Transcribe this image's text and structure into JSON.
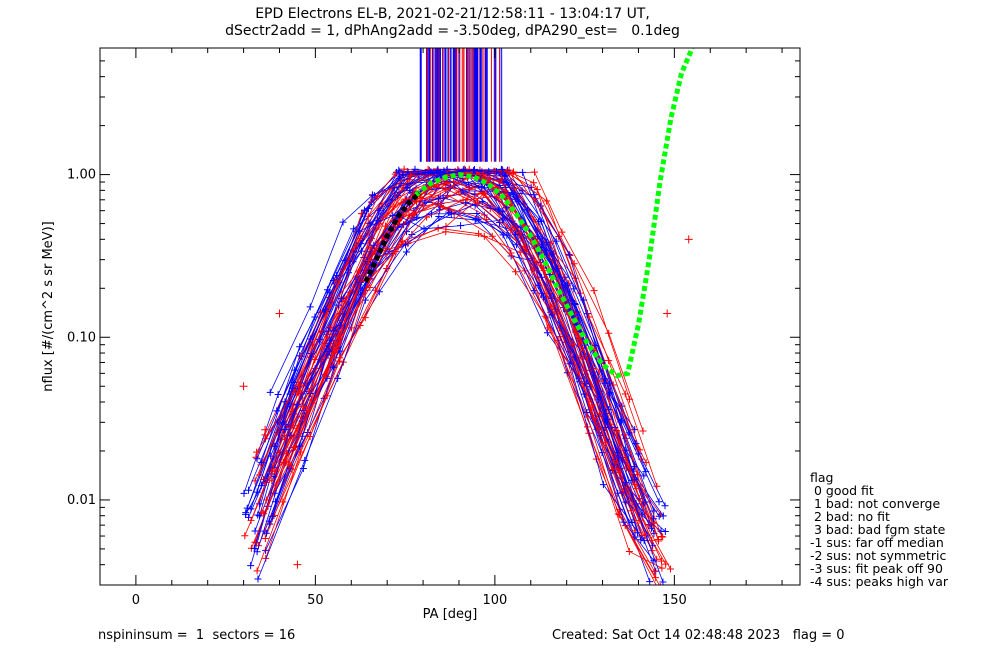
{
  "chart_data": {
    "type": "line",
    "title": "EPD Electrons EL-B, 2021-02-21/12:58:11 - 13:04:17 UT,",
    "subtitle": "dSectr2add = 1, dPhAng2add = -3.50deg, dPA290_est=   0.1deg",
    "xlabel": "PA [deg]",
    "ylabel": "nflux [#/(cm^2 s sr MeV)]",
    "xlim": [
      -10,
      185
    ],
    "ylim": [
      0.003,
      6.0
    ],
    "yscale": "log",
    "x_ticks": [
      0,
      50,
      100,
      150
    ],
    "x_tick_labels": [
      "0",
      "50",
      "100",
      "150"
    ],
    "y_ticks": [
      0.01,
      0.1,
      1.0
    ],
    "y_tick_labels": [
      "0.01",
      "0.10",
      "1.00"
    ],
    "grid": false,
    "series": [
      {
        "color": "#ff0000",
        "marker": "+",
        "description_points": [
          [
            30,
            0.005
          ],
          [
            40,
            0.02
          ],
          [
            50,
            0.06
          ],
          [
            60,
            0.2
          ],
          [
            70,
            0.55
          ],
          [
            80,
            0.9
          ],
          [
            90,
            1.0
          ],
          [
            100,
            0.9
          ],
          [
            110,
            0.5
          ],
          [
            120,
            0.15
          ],
          [
            130,
            0.04
          ],
          [
            140,
            0.009
          ],
          [
            146,
            0.005
          ]
        ]
      },
      {
        "color": "#0000ff",
        "marker": "+",
        "description_points": [
          [
            33,
            0.006
          ],
          [
            40,
            0.02
          ],
          [
            50,
            0.065
          ],
          [
            60,
            0.21
          ],
          [
            70,
            0.56
          ],
          [
            80,
            0.88
          ],
          [
            90,
            0.97
          ],
          [
            100,
            0.88
          ],
          [
            110,
            0.5
          ],
          [
            120,
            0.15
          ],
          [
            130,
            0.04
          ],
          [
            140,
            0.009
          ],
          [
            148,
            0.006
          ]
        ]
      },
      {
        "color": "#00ff00",
        "style": "dotted",
        "x": [
          78,
          82,
          86,
          90,
          94,
          98,
          102,
          106,
          110,
          114,
          118,
          122,
          126,
          130,
          134,
          137,
          140,
          143,
          146,
          149,
          152,
          155
        ],
        "y": [
          0.75,
          0.88,
          0.96,
          1.0,
          0.97,
          0.88,
          0.74,
          0.57,
          0.42,
          0.29,
          0.19,
          0.13,
          0.09,
          0.068,
          0.058,
          0.06,
          0.12,
          0.3,
          0.9,
          2.2,
          4.2,
          6.0
        ]
      },
      {
        "color": "#000000",
        "style": "dotted",
        "x": [
          64,
          67,
          70,
          73,
          76,
          79
        ],
        "y": [
          0.22,
          0.3,
          0.42,
          0.55,
          0.67,
          0.77
        ]
      }
    ],
    "spikes": {
      "description": "vertical lines at top near PA 79-102 extending above plot",
      "x_range": [
        79,
        102
      ],
      "from_y": 1.2
    },
    "outliers": [
      [
        30,
        0.05
      ],
      [
        40,
        0.14
      ],
      [
        148,
        0.14
      ],
      [
        154,
        0.4
      ],
      [
        36,
        0.027
      ],
      [
        45,
        0.004
      ]
    ]
  },
  "legend": {
    "title": "flag",
    "items": [
      " 0 good fit",
      " 1 bad: not converge",
      " 2 bad: no fit",
      " 3 bad: bad fgm state",
      "-1 sus: far off median",
      "-2 sus: not symmetric",
      "-3 sus: fit peak off 90",
      "-4 sus: peaks high var"
    ]
  },
  "footer": {
    "left": "nspininsum =  1  sectors = 16",
    "right": "Created: Sat Oct 14 02:48:48 2023   flag = 0"
  },
  "colors": {
    "red": "#ff0000",
    "blue": "#0000ff",
    "green": "#00ff00",
    "black": "#000000"
  }
}
